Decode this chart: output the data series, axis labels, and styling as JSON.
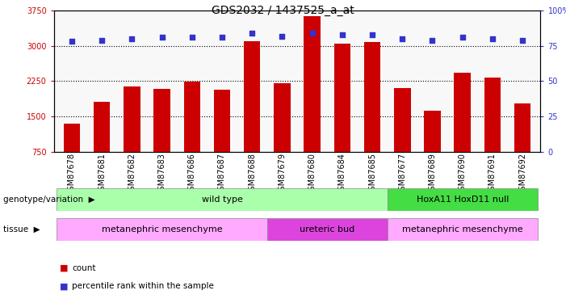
{
  "title": "GDS2032 / 1437525_a_at",
  "samples": [
    "GSM87678",
    "GSM87681",
    "GSM87682",
    "GSM87683",
    "GSM87686",
    "GSM87687",
    "GSM87688",
    "GSM87679",
    "GSM87680",
    "GSM87684",
    "GSM87685",
    "GSM87677",
    "GSM87689",
    "GSM87690",
    "GSM87691",
    "GSM87692"
  ],
  "counts": [
    1350,
    1800,
    2130,
    2090,
    2230,
    2060,
    3090,
    2210,
    3640,
    3050,
    3080,
    2100,
    1620,
    2430,
    2320,
    1780
  ],
  "percentile_ranks": [
    78,
    79,
    80,
    81,
    81,
    81,
    84,
    82,
    84,
    83,
    83,
    80,
    79,
    81,
    80,
    79
  ],
  "ylim_left": [
    750,
    3750
  ],
  "ylim_right": [
    0,
    100
  ],
  "yticks_left": [
    750,
    1500,
    2250,
    3000,
    3750
  ],
  "yticks_right": [
    0,
    25,
    50,
    75,
    100
  ],
  "bar_color": "#cc0000",
  "dot_color": "#3333cc",
  "bg_color": "#ffffff",
  "chart_bg": "#f8f8f8",
  "genotype_groups": [
    {
      "label": "wild type",
      "start": 0,
      "end": 11,
      "color": "#aaffaa"
    },
    {
      "label": "HoxA11 HoxD11 null",
      "start": 11,
      "end": 16,
      "color": "#44dd44"
    }
  ],
  "tissue_groups": [
    {
      "label": "metanephric mesenchyme",
      "start": 0,
      "end": 7,
      "color": "#ffaaff"
    },
    {
      "label": "ureteric bud",
      "start": 7,
      "end": 11,
      "color": "#dd44dd"
    },
    {
      "label": "metanephric mesenchyme",
      "start": 11,
      "end": 16,
      "color": "#ffaaff"
    }
  ],
  "legend_count_color": "#cc0000",
  "legend_dot_color": "#3333cc",
  "title_fontsize": 10,
  "tick_fontsize": 7,
  "label_fontsize": 8,
  "annot_fontsize": 7.5
}
